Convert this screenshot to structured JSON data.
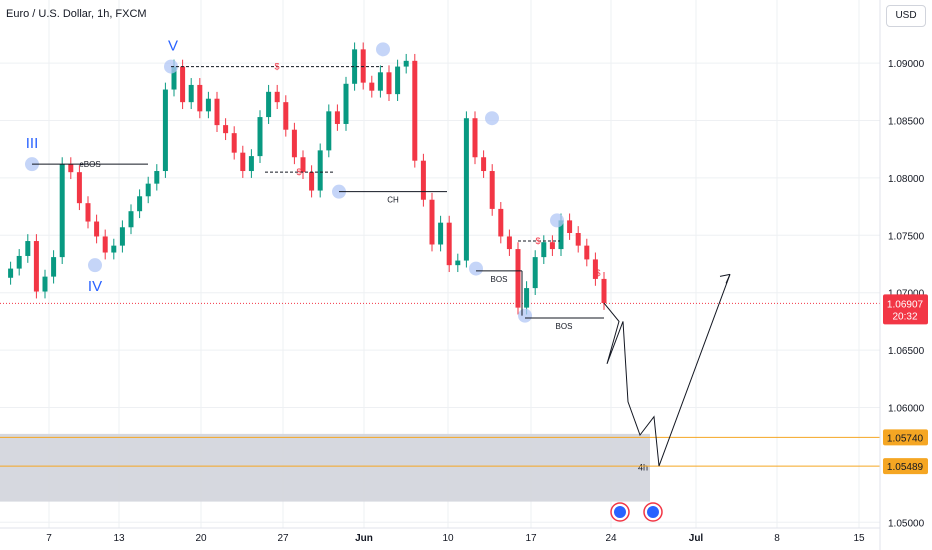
{
  "chart_data": {
    "type": "line",
    "title": "Euro / U.S. Dollar, 1h, FXCM",
    "currency": "USD",
    "x_ticks": [
      "7",
      "13",
      "20",
      "27",
      "Jun",
      "10",
      "17",
      "24",
      "Jul",
      "8",
      "15"
    ],
    "y_ticks": [
      "1.09000",
      "1.08500",
      "1.08000",
      "1.07500",
      "1.07000",
      "1.06500",
      "1.06000",
      "1.05000"
    ],
    "ylim": [
      1.0495,
      1.0955
    ],
    "grid": true,
    "series": [
      {
        "values": [
          1.0713,
          1.0721,
          1.0732,
          1.0745,
          1.0701,
          1.0714,
          1.0731,
          1.0812,
          1.0805,
          1.0778,
          1.0762,
          1.0749,
          1.0735,
          1.0741,
          1.0757,
          1.0771,
          1.0784,
          1.0795,
          1.0806,
          1.0877,
          1.0897,
          1.0866,
          1.0881,
          1.0858,
          1.0869,
          1.0846,
          1.0839,
          1.0822,
          1.0806,
          1.0819,
          1.0853,
          1.0875,
          1.0866,
          1.0842,
          1.0818,
          1.0805,
          1.0789,
          1.0824,
          1.0858,
          1.0847,
          1.0882,
          1.0912,
          1.0883,
          1.0876,
          1.0892,
          1.0873,
          1.0897,
          1.0902,
          1.0815,
          1.0781,
          1.0742,
          1.0761,
          1.0724,
          1.0728,
          1.0852,
          1.0818,
          1.0806,
          1.0773,
          1.0749,
          1.0738,
          1.0687,
          1.0704,
          1.0731,
          1.0744,
          1.0738,
          1.0763,
          1.0752,
          1.0741,
          1.0729,
          1.0712,
          1.0691
        ]
      }
    ],
    "projection": [
      1.0691,
      1.0675,
      1.0638,
      1.0675,
      1.0605,
      1.0576,
      1.0592,
      1.0549,
      1.0716
    ],
    "levels": [
      {
        "value": 1.0574,
        "label": "1.05740",
        "color": "#f5a623"
      },
      {
        "value": 1.05489,
        "label": "1.05489",
        "color": "#f5a623"
      }
    ],
    "current_price": {
      "value": 1.06907,
      "label": "1.06907",
      "countdown": "20:32",
      "color": "#f23645"
    },
    "zone": {
      "from": 1.0518,
      "to": 1.0577,
      "label": "4h"
    },
    "annotations": {
      "wave_labels": [
        "III",
        "IV",
        "V"
      ],
      "eBOS": "eBOS",
      "dollar": "$",
      "CH": "CH",
      "BOS": "BOS"
    }
  }
}
